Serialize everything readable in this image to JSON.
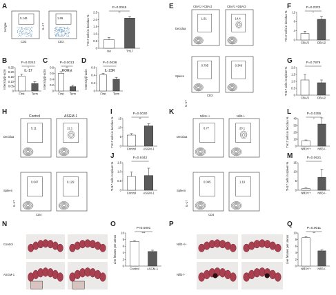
{
  "panel_labels": [
    "A",
    "B",
    "C",
    "D",
    "E",
    "F",
    "G",
    "H",
    "I",
    "J",
    "K",
    "L",
    "M",
    "N",
    "O",
    "P",
    "Q"
  ],
  "flow": {
    "A": {
      "left_axis_y": "Isotype",
      "left_axis_x": "CD3",
      "left_value": "0.146",
      "right_axis_y": "IL-17",
      "right_axis_x": "CD3",
      "right_value": "1.89"
    },
    "E": {
      "col1": "CBA/J ×CBA/J",
      "col2": "CBA/J ×DBA/2",
      "row1": "Decidua",
      "row2": "Spleen",
      "y_axis": "IL-17",
      "x_axis": "CD3",
      "values": [
        "1.81",
        "14.4",
        "0.795",
        "0.346"
      ]
    },
    "H": {
      "col1": "Control",
      "col2": "ASGM-1",
      "row1": "Decidua",
      "row2": "Spleen",
      "y_axis": "IL-17",
      "x_axis": "CD4",
      "values": [
        "5.11",
        "12.1",
        "0.047",
        "0.129"
      ]
    },
    "K": {
      "col1": "Nfil3+/+",
      "col2": "Nfil3-/-",
      "row1": "Decidua",
      "row2": "Spleen",
      "y_axis": "IL-17",
      "x_axis": "CD4",
      "values": [
        "6.77",
        "20.1",
        "0.045",
        "1.19"
      ]
    }
  },
  "photos": {
    "N": {
      "row1": "Control",
      "row2": "ASGM-1"
    },
    "P": {
      "row1": "Nfil3+/+",
      "row2": "Nfil3-/-"
    }
  },
  "chart_data": [
    {
      "panel": "A",
      "type": "bar",
      "categories": [
        "Iso",
        "TH17"
      ],
      "values": [
        0.6,
        2.1
      ],
      "errors": [
        0.15,
        0.12
      ],
      "ylabel": "TH17 cells in decidua %",
      "ylim": [
        0,
        2.5
      ],
      "yticks": [
        "0",
        "0.5",
        "1.0",
        "1.5",
        "2.0",
        "2.5"
      ],
      "pvalue": "P=0.0045",
      "stars": "**"
    },
    {
      "panel": "B",
      "type": "bar",
      "categories": [
        "First",
        "Term"
      ],
      "values": [
        0.16,
        0.08
      ],
      "errors": [
        0.02,
        0.02
      ],
      "title": "IL-17",
      "ylabel": "Intensity/β-actin",
      "ylim": [
        0,
        0.25
      ],
      "yticks": [
        "0",
        "0.05",
        "0.10",
        "0.15",
        "0.20",
        "0.25"
      ],
      "pvalue": "P=0.0242",
      "stars": "*"
    },
    {
      "panel": "C",
      "type": "bar",
      "categories": [
        "First",
        "Term"
      ],
      "values": [
        0.6,
        0.15
      ],
      "errors": [
        0.06,
        0.05
      ],
      "title": "RORγt",
      "ylabel": "Intensity/β-actin",
      "ylim": [
        0,
        0.8
      ],
      "yticks": [
        "0",
        "0.2",
        "0.4",
        "0.6",
        "0.8"
      ],
      "pvalue": "P=0.0013",
      "stars": "**"
    },
    {
      "panel": "D",
      "type": "bar",
      "categories": [
        "First",
        "Term"
      ],
      "values": [
        0.42,
        0.3
      ],
      "errors": [
        0.03,
        0.05
      ],
      "title": "IL-23R",
      "ylabel": "Intensity/β-actin",
      "ylim": [
        0,
        0.6
      ],
      "yticks": [
        "0",
        "0.2",
        "0.4",
        "0.6"
      ],
      "pvalue": "P=0.0638"
    },
    {
      "panel": "F",
      "type": "bar",
      "categories": [
        "CBA/J",
        "DBA/2"
      ],
      "values": [
        2.8,
        9.0
      ],
      "errors": [
        1.0,
        1.3
      ],
      "ylabel": "TH17 cells in decidua %",
      "ylim": [
        0,
        12
      ],
      "yticks": [
        "0",
        "4",
        "8",
        "12"
      ],
      "pvalue": "P=0.0370",
      "stars": "*"
    },
    {
      "panel": "G",
      "type": "bar",
      "categories": [
        "CBA/J",
        "DBA/2"
      ],
      "values": [
        1.1,
        0.9
      ],
      "errors": [
        0.4,
        0.2
      ],
      "ylabel": "TH17 cells in spleen %",
      "ylim": [
        0,
        2.0
      ],
      "yticks": [
        "0",
        "0.5",
        "1.0",
        "1.5",
        "2.0"
      ],
      "pvalue": "P=0.7879"
    },
    {
      "panel": "I",
      "type": "bar",
      "categories": [
        "Control",
        "ASGM-1"
      ],
      "values": [
        6.0,
        11.0
      ],
      "errors": [
        0.8,
        1.2
      ],
      "ylabel": "TH17 cells in decidua %",
      "ylim": [
        0,
        15
      ],
      "yticks": [
        "0",
        "5",
        "10",
        "15"
      ],
      "pvalue": "P=0.0030",
      "stars": "**"
    },
    {
      "panel": "J",
      "type": "bar",
      "categories": [
        "Control",
        "ASGM-1"
      ],
      "values": [
        0.75,
        0.8
      ],
      "errors": [
        0.25,
        0.4
      ],
      "ylabel": "TH17 cells in spleen %",
      "ylim": [
        0,
        1.5
      ],
      "yticks": [
        "0",
        "0.5",
        "1.0",
        "1.5"
      ],
      "pvalue": "P=0.9342"
    },
    {
      "panel": "L",
      "type": "bar",
      "categories": [
        "Nfil3+/+",
        "Nfil3-/-"
      ],
      "values": [
        8,
        32
      ],
      "errors": [
        1,
        9
      ],
      "ylabel": "TH17 cells in decidua %",
      "ylim": [
        0,
        40
      ],
      "yticks": [
        "0",
        "10",
        "20",
        "30",
        "40"
      ],
      "pvalue": "P=0.0355",
      "stars": "*"
    },
    {
      "panel": "M",
      "type": "bar",
      "categories": [
        "Nfil3+/+",
        "Nfil3-/-"
      ],
      "values": [
        1.0,
        7.0
      ],
      "errors": [
        0.5,
        4.5
      ],
      "ylabel": "TH17 cells in spleen %",
      "ylim": [
        0,
        15
      ],
      "yticks": [
        "0",
        "5",
        "10",
        "15"
      ],
      "pvalue": "P=0.0621"
    },
    {
      "panel": "O",
      "type": "bar",
      "categories": [
        "Control",
        "ASGM-1"
      ],
      "values": [
        7.4,
        4.4
      ],
      "errors": [
        0.3,
        0.4
      ],
      "ylabel": "Live fetuses per uterus",
      "ylim": [
        0,
        10
      ],
      "yticks": [
        "0",
        "2",
        "4",
        "6",
        "8",
        "10"
      ],
      "pvalue": "P<0.0001",
      "stars": "***"
    },
    {
      "panel": "Q",
      "type": "bar",
      "categories": [
        "Nfil3+/+",
        "Nfil3-/-"
      ],
      "values": [
        8.6,
        4.6
      ],
      "errors": [
        0.3,
        0.3
      ],
      "ylabel": "Live fetuses per uterus",
      "ylim": [
        0,
        10
      ],
      "yticks": [
        "0",
        "2",
        "4",
        "6",
        "8",
        "10"
      ],
      "pvalue": "P=0.0011",
      "stars": "**"
    }
  ],
  "colors": {
    "bar_light": "#ffffff",
    "bar_dark": "#5b5b5b",
    "axis": "#333333",
    "tissue": "#a84050",
    "photo_bg": "#eceae8",
    "box_pos": "#7fa8c8",
    "contour": "#2a2a2a"
  }
}
